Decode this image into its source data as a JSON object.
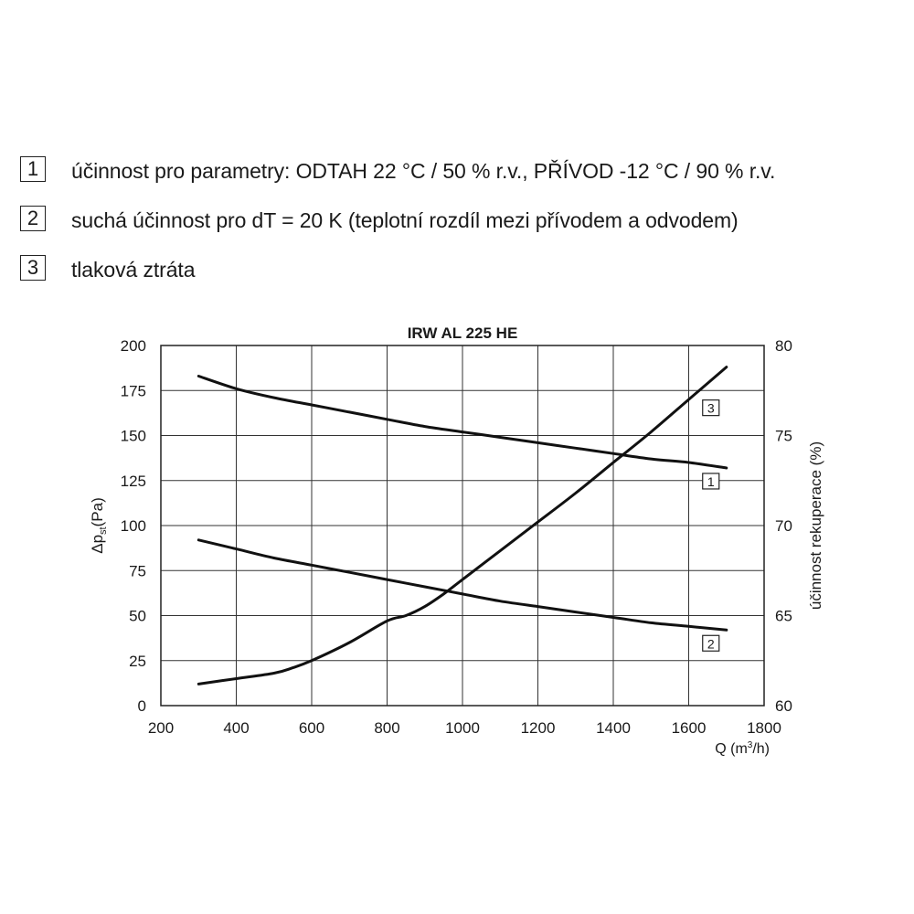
{
  "legend": [
    {
      "num": "1",
      "text": "účinnost pro parametry: ODTAH 22 °C / 50 % r.v., PŘÍVOD -12 °C / 90 % r.v."
    },
    {
      "num": "2",
      "text": "suchá účinnost pro dT = 20 K (teplotní rozdíl mezi přívodem a odvodem)"
    },
    {
      "num": "3",
      "text": "tlaková ztráta"
    }
  ],
  "chart_data": {
    "type": "line",
    "title": "IRW AL 225 HE",
    "xlabel": "Q (m³/h)",
    "ylabel_left": "Δpst(Pa)",
    "ylabel_right": "účinnost rekuperace (%)",
    "xlim": [
      200,
      1800
    ],
    "ylim_left": [
      0,
      200
    ],
    "ylim_right": [
      60,
      80
    ],
    "x_ticks": [
      "200",
      "400",
      "600",
      "800",
      "1000",
      "1200",
      "1400",
      "1600",
      "1800"
    ],
    "y_left_ticks": [
      "0",
      "25",
      "50",
      "75",
      "100",
      "125",
      "150",
      "175",
      "200"
    ],
    "y_right_ticks": [
      "60",
      "65",
      "70",
      "75",
      "80"
    ],
    "grid": true,
    "series": [
      {
        "name": "1",
        "axis": "right",
        "x": [
          300,
          400,
          500,
          600,
          700,
          800,
          900,
          1000,
          1100,
          1200,
          1300,
          1400,
          1500,
          1600,
          1700
        ],
        "values": [
          78.3,
          77.6,
          77.1,
          76.7,
          76.3,
          75.9,
          75.5,
          75.2,
          74.9,
          74.6,
          74.3,
          74.0,
          73.7,
          73.5,
          73.2
        ]
      },
      {
        "name": "2",
        "axis": "right",
        "x": [
          300,
          400,
          500,
          600,
          700,
          800,
          900,
          1000,
          1100,
          1200,
          1300,
          1400,
          1500,
          1600,
          1700
        ],
        "values": [
          69.2,
          68.7,
          68.2,
          67.8,
          67.4,
          67.0,
          66.6,
          66.2,
          65.8,
          65.5,
          65.2,
          64.9,
          64.6,
          64.4,
          64.2
        ]
      },
      {
        "name": "3",
        "axis": "left",
        "x": [
          300,
          400,
          500,
          550,
          600,
          700,
          800,
          850,
          900,
          950,
          1000,
          1100,
          1200,
          1300,
          1400,
          1500,
          1600,
          1700
        ],
        "values": [
          12,
          15,
          18,
          21,
          25,
          35,
          47,
          50,
          55,
          62,
          70,
          86,
          102,
          118,
          135,
          152,
          170,
          188
        ]
      }
    ]
  }
}
